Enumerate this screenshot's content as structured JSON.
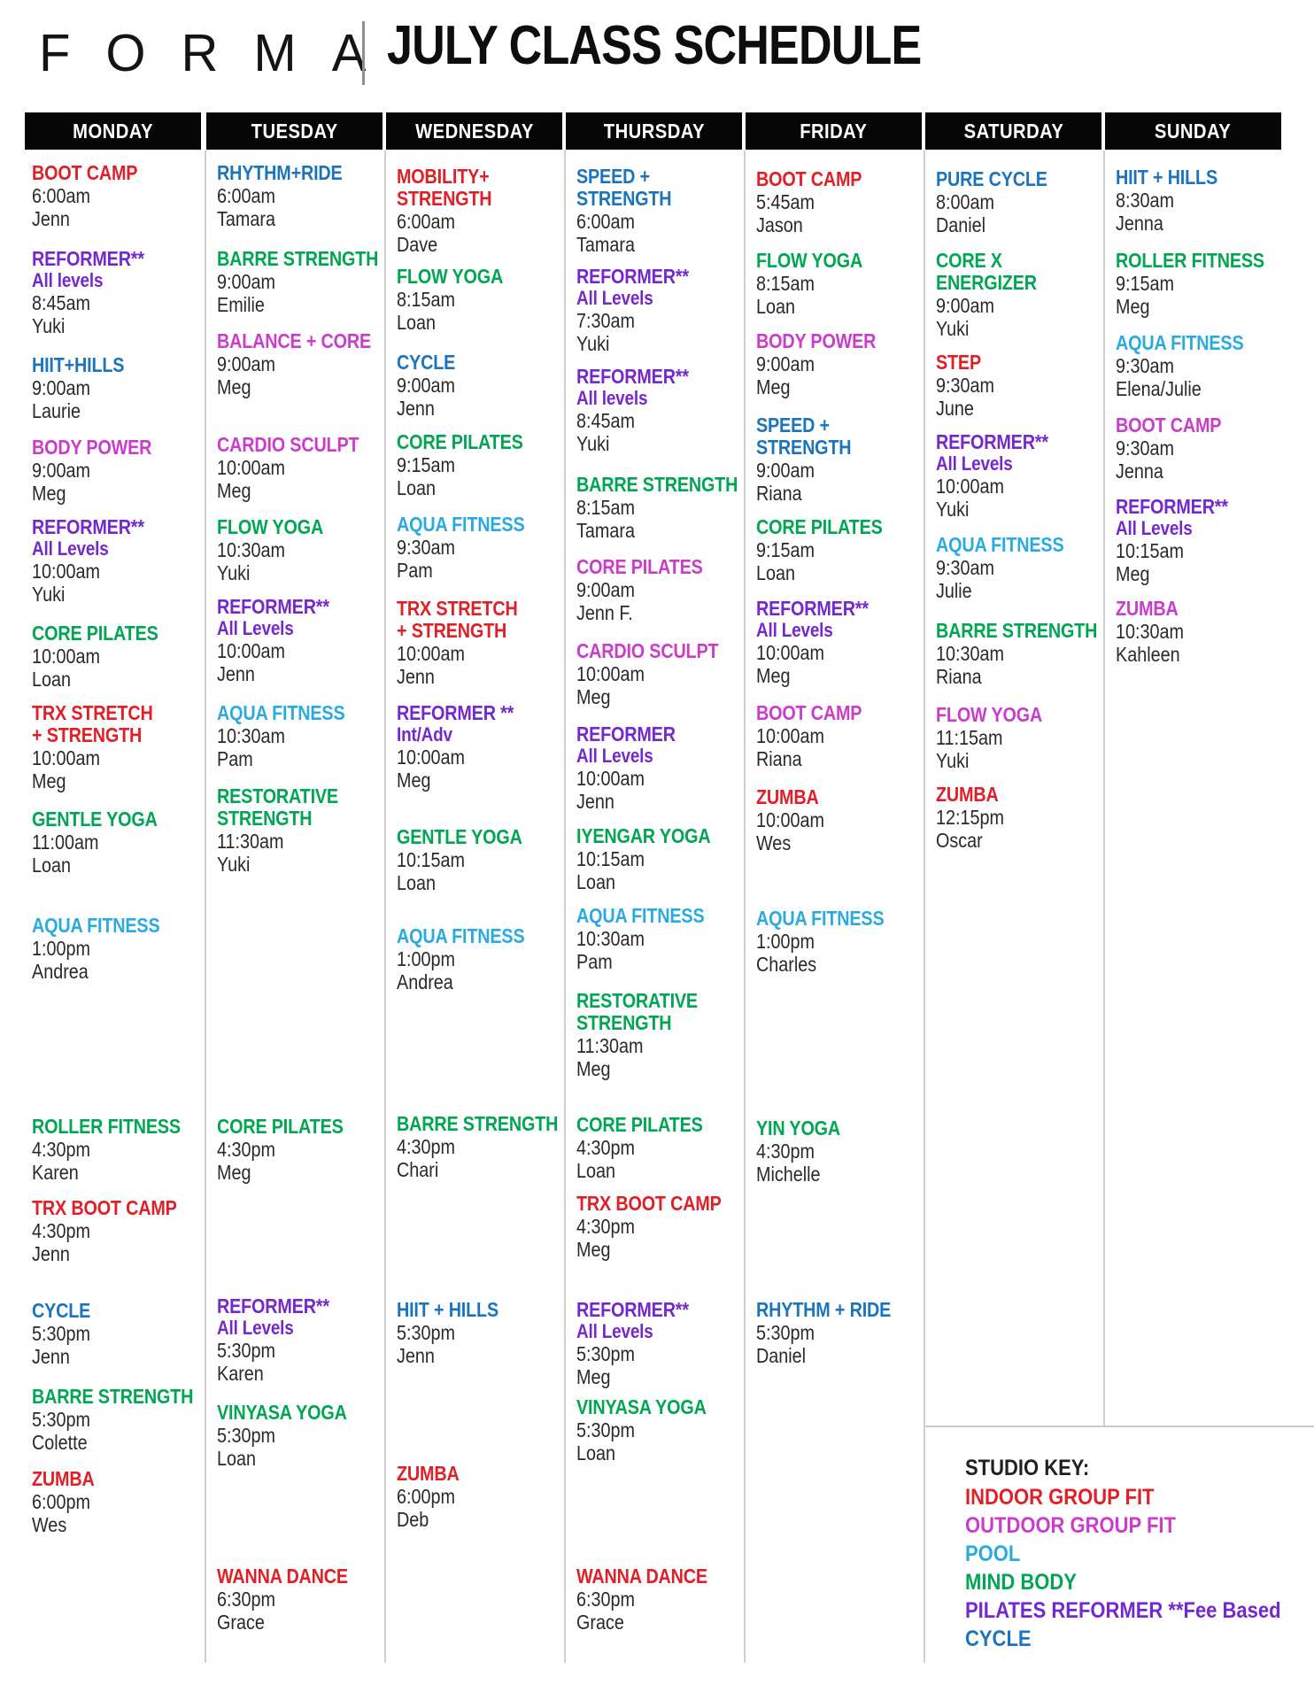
{
  "header": {
    "logo": "FORMA",
    "title": "JULY CLASS SCHEDULE"
  },
  "colors": {
    "indoor": "#e01f26",
    "outdoor": "#cc3ccb",
    "pool": "#29abe2",
    "mindbody": "#00a651",
    "reformer": "#7528ce",
    "cycle": "#1c75bc",
    "body_text": "#2b2829",
    "key_title": "#231f20",
    "bar_background": "#060606"
  },
  "days": [
    {
      "name": "MONDAY",
      "classes": [
        {
          "title": "BOOT CAMP",
          "category": "indoor",
          "time": "6:00am",
          "instructor": "Jenn"
        },
        {
          "title": "REFORMER**",
          "subtitle": "All levels",
          "category": "reformer",
          "time": "8:45am",
          "instructor": "Yuki"
        },
        {
          "title": "HIIT+HILLS",
          "category": "cycle",
          "time": "9:00am",
          "instructor": "Laurie"
        },
        {
          "title": "BODY POWER",
          "category": "outdoor",
          "time": "9:00am",
          "instructor": "Meg"
        },
        {
          "title": "REFORMER**",
          "subtitle": "All Levels",
          "category": "reformer",
          "time": "10:00am",
          "instructor": "Yuki"
        },
        {
          "title": "CORE PILATES",
          "category": "mindbody",
          "time": "10:00am",
          "instructor": "Loan"
        },
        {
          "title": "TRX STRETCH\n+ STRENGTH",
          "category": "indoor",
          "time": "10:00am",
          "instructor": "Meg"
        },
        {
          "title": "GENTLE YOGA",
          "category": "mindbody",
          "time": "11:00am",
          "instructor": "Loan"
        },
        {
          "title": "AQUA FITNESS",
          "category": "pool",
          "time": "1:00pm",
          "instructor": "Andrea"
        },
        {
          "title": "ROLLER FITNESS",
          "category": "mindbody",
          "time": "4:30pm",
          "instructor": "Karen"
        },
        {
          "title": "TRX BOOT CAMP",
          "category": "indoor",
          "time": "4:30pm",
          "instructor": "Jenn"
        },
        {
          "title": "CYCLE",
          "category": "cycle",
          "time": "5:30pm",
          "instructor": "Jenn"
        },
        {
          "title": "BARRE STRENGTH",
          "category": "mindbody",
          "time": "5:30pm",
          "instructor": "Colette"
        },
        {
          "title": "ZUMBA",
          "category": "indoor",
          "time": "6:00pm",
          "instructor": "Wes"
        }
      ]
    },
    {
      "name": "TUESDAY",
      "classes": [
        {
          "title": "RHYTHM+RIDE",
          "category": "cycle",
          "time": "6:00am",
          "instructor": "Tamara"
        },
        {
          "title": "BARRE STRENGTH",
          "category": "mindbody",
          "time": "9:00am",
          "instructor": "Emilie"
        },
        {
          "title": "BALANCE + CORE",
          "category": "outdoor",
          "time": "9:00am",
          "instructor": "Meg"
        },
        {
          "title": "CARDIO SCULPT",
          "category": "outdoor",
          "time": "10:00am",
          "instructor": "Meg"
        },
        {
          "title": "FLOW YOGA",
          "category": "mindbody",
          "time": "10:30am",
          "instructor": "Yuki"
        },
        {
          "title": "REFORMER**",
          "subtitle": "All Levels",
          "category": "reformer",
          "time": "10:00am",
          "instructor": "Jenn"
        },
        {
          "title": "AQUA FITNESS",
          "category": "pool",
          "time": "10:30am",
          "instructor": "Pam"
        },
        {
          "title": "RESTORATIVE\nSTRENGTH",
          "category": "mindbody",
          "time": "11:30am",
          "instructor": "Yuki"
        },
        {
          "title": "CORE PILATES",
          "category": "mindbody",
          "time": "4:30pm",
          "instructor": "Meg"
        },
        {
          "title": "REFORMER**",
          "subtitle": "All Levels",
          "category": "reformer",
          "time": "5:30pm",
          "instructor": "Karen"
        },
        {
          "title": "VINYASA YOGA",
          "category": "mindbody",
          "time": "5:30pm",
          "instructor": "Loan"
        },
        {
          "title": "WANNA DANCE",
          "category": "indoor",
          "time": "6:30pm",
          "instructor": "Grace"
        }
      ]
    },
    {
      "name": "WEDNESDAY",
      "classes": [
        {
          "title": "MOBILITY+\nSTRENGTH",
          "category": "indoor",
          "time": "6:00am",
          "instructor": "Dave"
        },
        {
          "title": "FLOW YOGA",
          "category": "mindbody",
          "time": "8:15am",
          "instructor": "Loan"
        },
        {
          "title": "CYCLE",
          "category": "cycle",
          "time": "9:00am",
          "instructor": "Jenn"
        },
        {
          "title": "CORE PILATES",
          "category": "mindbody",
          "time": "9:15am",
          "instructor": "Loan"
        },
        {
          "title": "AQUA FITNESS",
          "category": "pool",
          "time": "9:30am",
          "instructor": "Pam"
        },
        {
          "title": "TRX STRETCH\n+ STRENGTH",
          "category": "indoor",
          "time": "10:00am",
          "instructor": "Jenn"
        },
        {
          "title": "REFORMER **",
          "subtitle": "Int/Adv",
          "category": "reformer",
          "time": "10:00am",
          "instructor": "Meg"
        },
        {
          "title": "GENTLE YOGA",
          "category": "mindbody",
          "time": "10:15am",
          "instructor": "Loan"
        },
        {
          "title": "AQUA FITNESS",
          "category": "pool",
          "time": "1:00pm",
          "instructor": "Andrea"
        },
        {
          "title": "BARRE STRENGTH",
          "category": "mindbody",
          "time": "4:30pm",
          "instructor": "Chari"
        },
        {
          "title": "HIIT + HILLS",
          "category": "cycle",
          "time": "5:30pm",
          "instructor": "Jenn"
        },
        {
          "title": "ZUMBA",
          "category": "indoor",
          "time": "6:00pm",
          "instructor": "Deb"
        }
      ]
    },
    {
      "name": "THURSDAY",
      "classes": [
        {
          "title": "SPEED +\nSTRENGTH",
          "category": "cycle",
          "time": "6:00am",
          "instructor": "Tamara"
        },
        {
          "title": "REFORMER**",
          "subtitle": "All Levels",
          "category": "reformer",
          "time": "7:30am",
          "instructor": "Yuki"
        },
        {
          "title": "REFORMER**",
          "subtitle": "All levels",
          "category": "reformer",
          "time": "8:45am",
          "instructor": "Yuki"
        },
        {
          "title": "BARRE STRENGTH",
          "category": "mindbody",
          "time": "8:15am",
          "instructor": "Tamara"
        },
        {
          "title": "CORE PILATES",
          "category": "outdoor",
          "time": "9:00am",
          "instructor": "Jenn F."
        },
        {
          "title": "CARDIO SCULPT",
          "category": "outdoor",
          "time": "10:00am",
          "instructor": "Meg"
        },
        {
          "title": "REFORMER",
          "subtitle": "All Levels",
          "category": "reformer",
          "time": "10:00am",
          "instructor": "Jenn"
        },
        {
          "title": "IYENGAR YOGA",
          "category": "mindbody",
          "time": "10:15am",
          "instructor": "Loan"
        },
        {
          "title": "AQUA FITNESS",
          "category": "pool",
          "time": "10:30am",
          "instructor": "Pam"
        },
        {
          "title": "RESTORATIVE\nSTRENGTH",
          "category": "mindbody",
          "time": "11:30am",
          "instructor": "Meg"
        },
        {
          "title": "CORE PILATES",
          "category": "mindbody",
          "time": "4:30pm",
          "instructor": "Loan"
        },
        {
          "title": "TRX BOOT CAMP",
          "category": "indoor",
          "time": "4:30pm",
          "instructor": "Meg"
        },
        {
          "title": "REFORMER**",
          "subtitle": "All Levels",
          "category": "reformer",
          "time": "5:30pm",
          "instructor": "Meg"
        },
        {
          "title": "VINYASA YOGA",
          "category": "mindbody",
          "time": "5:30pm",
          "instructor": "Loan"
        },
        {
          "title": "WANNA DANCE",
          "category": "indoor",
          "time": "6:30pm",
          "instructor": "Grace"
        }
      ]
    },
    {
      "name": "FRIDAY",
      "classes": [
        {
          "title": "BOOT CAMP",
          "category": "indoor",
          "time": "5:45am",
          "instructor": "Jason"
        },
        {
          "title": "FLOW YOGA",
          "category": "mindbody",
          "time": "8:15am",
          "instructor": "Loan"
        },
        {
          "title": "BODY POWER",
          "category": "outdoor",
          "time": "9:00am",
          "instructor": "Meg"
        },
        {
          "title": "SPEED +\nSTRENGTH",
          "category": "cycle",
          "time": "9:00am",
          "instructor": "Riana"
        },
        {
          "title": "CORE PILATES",
          "category": "mindbody",
          "time": "9:15am",
          "instructor": "Loan"
        },
        {
          "title": "REFORMER**",
          "subtitle": "All Levels",
          "category": "reformer",
          "time": "10:00am",
          "instructor": "Meg"
        },
        {
          "title": "BOOT CAMP",
          "category": "outdoor",
          "time": "10:00am",
          "instructor": "Riana"
        },
        {
          "title": "ZUMBA",
          "category": "indoor",
          "time": "10:00am",
          "instructor": "Wes"
        },
        {
          "title": "AQUA FITNESS",
          "category": "pool",
          "time": "1:00pm",
          "instructor": "Charles"
        },
        {
          "title": "YIN YOGA",
          "category": "mindbody",
          "time": "4:30pm",
          "instructor": "Michelle"
        },
        {
          "title": "RHYTHM + RIDE",
          "category": "cycle",
          "time": "5:30pm",
          "instructor": "Daniel"
        }
      ]
    },
    {
      "name": "SATURDAY",
      "classes": [
        {
          "title": "PURE CYCLE",
          "category": "cycle",
          "time": "8:00am",
          "instructor": "Daniel"
        },
        {
          "title": "CORE X\nENERGIZER",
          "category": "mindbody",
          "time": "9:00am",
          "instructor": "Yuki"
        },
        {
          "title": "STEP",
          "category": "indoor",
          "time": "9:30am",
          "instructor": "June"
        },
        {
          "title": "REFORMER**",
          "subtitle": "All Levels",
          "category": "reformer",
          "time": "10:00am",
          "instructor": "Yuki"
        },
        {
          "title": "AQUA FITNESS",
          "category": "pool",
          "time": "9:30am",
          "instructor": "Julie"
        },
        {
          "title": "BARRE STRENGTH",
          "category": "mindbody",
          "time": "10:30am",
          "instructor": "Riana"
        },
        {
          "title": "FLOW YOGA",
          "category": "outdoor",
          "time": "11:15am",
          "instructor": "Yuki"
        },
        {
          "title": "ZUMBA",
          "category": "indoor",
          "time": "12:15pm",
          "instructor": "Oscar"
        }
      ]
    },
    {
      "name": "SUNDAY",
      "classes": [
        {
          "title": "HIIT + HILLS",
          "category": "cycle",
          "time": "8:30am",
          "instructor": "Jenna"
        },
        {
          "title": "ROLLER FITNESS",
          "category": "mindbody",
          "time": "9:15am",
          "instructor": "Meg"
        },
        {
          "title": "AQUA FITNESS",
          "category": "pool",
          "time": "9:30am",
          "instructor": "Elena/Julie"
        },
        {
          "title": "BOOT CAMP",
          "category": "outdoor",
          "time": "9:30am",
          "instructor": "Jenna"
        },
        {
          "title": "REFORMER**",
          "subtitle": "All Levels",
          "category": "reformer",
          "time": "10:15am",
          "instructor": "Meg"
        },
        {
          "title": "ZUMBA",
          "category": "outdoor",
          "time": "10:30am",
          "instructor": "Kahleen"
        }
      ]
    }
  ],
  "studio_key": {
    "title": "STUDIO KEY:",
    "entries": [
      {
        "label": "INDOOR GROUP FIT",
        "category": "indoor"
      },
      {
        "label": "OUTDOOR GROUP FIT",
        "category": "outdoor"
      },
      {
        "label": "POOL",
        "category": "pool"
      },
      {
        "label": "MIND BODY",
        "category": "mindbody"
      },
      {
        "label": "PILATES REFORMER **Fee Based",
        "category": "reformer"
      },
      {
        "label": "CYCLE",
        "category": "cycle"
      }
    ]
  }
}
